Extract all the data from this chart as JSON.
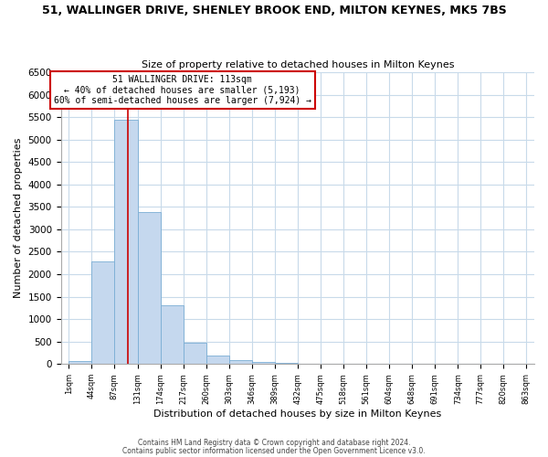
{
  "title1": "51, WALLINGER DRIVE, SHENLEY BROOK END, MILTON KEYNES, MK5 7BS",
  "title2": "Size of property relative to detached houses in Milton Keynes",
  "xlabel": "Distribution of detached houses by size in Milton Keynes",
  "ylabel": "Number of detached properties",
  "bin_edges": [
    1,
    44,
    87,
    131,
    174,
    217,
    260,
    303,
    346,
    389,
    432,
    475,
    518,
    561,
    604,
    648,
    691,
    734,
    777,
    820,
    863
  ],
  "counts": [
    70,
    2280,
    5450,
    3380,
    1310,
    480,
    195,
    90,
    40,
    15,
    10,
    5,
    3,
    2,
    1,
    1,
    1,
    1,
    1,
    1
  ],
  "bar_color": "#c5d8ee",
  "bar_edge_color": "#7aadd4",
  "vline_x": 113,
  "vline_color": "#cc0000",
  "annotation_text": "51 WALLINGER DRIVE: 113sqm\n← 40% of detached houses are smaller (5,193)\n60% of semi-detached houses are larger (7,924) →",
  "annotation_box_color": "white",
  "annotation_box_edge": "#cc0000",
  "ylim": [
    0,
    6500
  ],
  "yticks": [
    0,
    500,
    1000,
    1500,
    2000,
    2500,
    3000,
    3500,
    4000,
    4500,
    5000,
    5500,
    6000,
    6500
  ],
  "footer1": "Contains HM Land Registry data © Crown copyright and database right 2024.",
  "footer2": "Contains public sector information licensed under the Open Government Licence v3.0.",
  "tick_labels": [
    "1sqm",
    "44sqm",
    "87sqm",
    "131sqm",
    "174sqm",
    "217sqm",
    "260sqm",
    "303sqm",
    "346sqm",
    "389sqm",
    "432sqm",
    "475sqm",
    "518sqm",
    "561sqm",
    "604sqm",
    "648sqm",
    "691sqm",
    "734sqm",
    "777sqm",
    "820sqm",
    "863sqm"
  ]
}
